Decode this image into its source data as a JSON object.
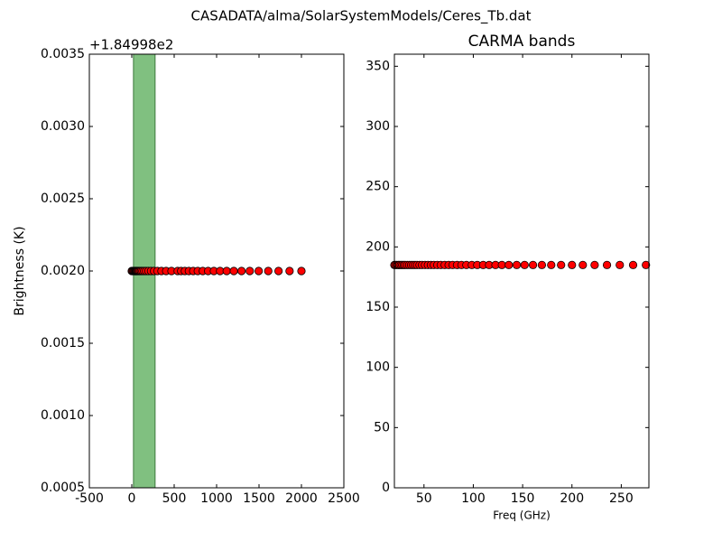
{
  "title": "CASADATA/alma/SolarSystemModels/Ceres_Tb.dat",
  "chart_data": [
    {
      "type": "scatter",
      "ylabel": "Brightness (K)",
      "y_offset_label": "+1.84998e2",
      "xlim": [
        -500,
        2500
      ],
      "xticks": [
        -500,
        0,
        500,
        1000,
        1500,
        2000,
        2500
      ],
      "ylim": [
        0.0005,
        0.0035
      ],
      "yticks": [
        0.0005,
        {
          "value": 0.001,
          "label": "0.0010"
        },
        0.0015,
        {
          "value": 0.002,
          "label": "0.0020"
        },
        0.0025,
        {
          "value": 0.003,
          "label": "0.0030"
        },
        0.0035
      ],
      "span": {
        "x": [
          20,
          275
        ],
        "color": "#80c080",
        "edgecolor": "#3d7a3d"
      },
      "color": "#ff0000",
      "edgecolor": "#000000",
      "x": [
        0,
        10,
        20,
        30,
        39,
        46,
        53,
        61,
        71,
        82,
        95,
        109,
        126,
        146,
        169,
        196,
        227,
        262,
        303,
        350,
        405,
        468,
        541,
        582,
        626,
        673,
        724,
        778,
        837,
        900,
        968,
        1041,
        1119,
        1203,
        1294,
        1391,
        1496,
        1609,
        1730,
        1860,
        2000
      ],
      "values": [
        0.002,
        0.002,
        0.002,
        0.002,
        0.002,
        0.002,
        0.002,
        0.002,
        0.002,
        0.002,
        0.002,
        0.002,
        0.002,
        0.002,
        0.002,
        0.002,
        0.002,
        0.002,
        0.002,
        0.002,
        0.002,
        0.002,
        0.002,
        0.002,
        0.002,
        0.002,
        0.002,
        0.002,
        0.002,
        0.002,
        0.002,
        0.002,
        0.002,
        0.002,
        0.002,
        0.002,
        0.002,
        0.002,
        0.002,
        0.002,
        0.002
      ]
    },
    {
      "type": "scatter",
      "title": "CARMA bands",
      "xlabel": "Freq (GHz)",
      "xlim": [
        20,
        278
      ],
      "xticks": [
        50,
        100,
        150,
        200,
        250
      ],
      "ylim": [
        0,
        360
      ],
      "yticks": [
        0,
        50,
        100,
        150,
        200,
        250,
        300,
        350
      ],
      "color": "#ff0000",
      "edgecolor": "#000000",
      "x": [
        20,
        21,
        22.5,
        24,
        25,
        26.5,
        28,
        29.5,
        31,
        33,
        35,
        37,
        39,
        41,
        43,
        45.5,
        48,
        51,
        54,
        57,
        60,
        63.5,
        67,
        71,
        75,
        79,
        83.5,
        88,
        93,
        98.5,
        104,
        110,
        116,
        122.5,
        129,
        136,
        144,
        152,
        160.5,
        169.5,
        179,
        189,
        200,
        211,
        223,
        235.5,
        248.5,
        262,
        275
      ],
      "values": [
        185,
        185,
        185,
        185,
        185,
        185,
        185,
        185,
        185,
        185,
        185,
        185,
        185,
        185,
        185,
        185,
        185,
        185,
        185,
        185,
        185,
        185,
        185,
        185,
        185,
        185,
        185,
        185,
        185,
        185,
        185,
        185,
        185,
        185,
        185,
        185,
        185,
        185,
        185,
        185,
        185,
        185,
        185,
        185,
        185,
        185,
        185,
        185,
        185
      ]
    }
  ]
}
